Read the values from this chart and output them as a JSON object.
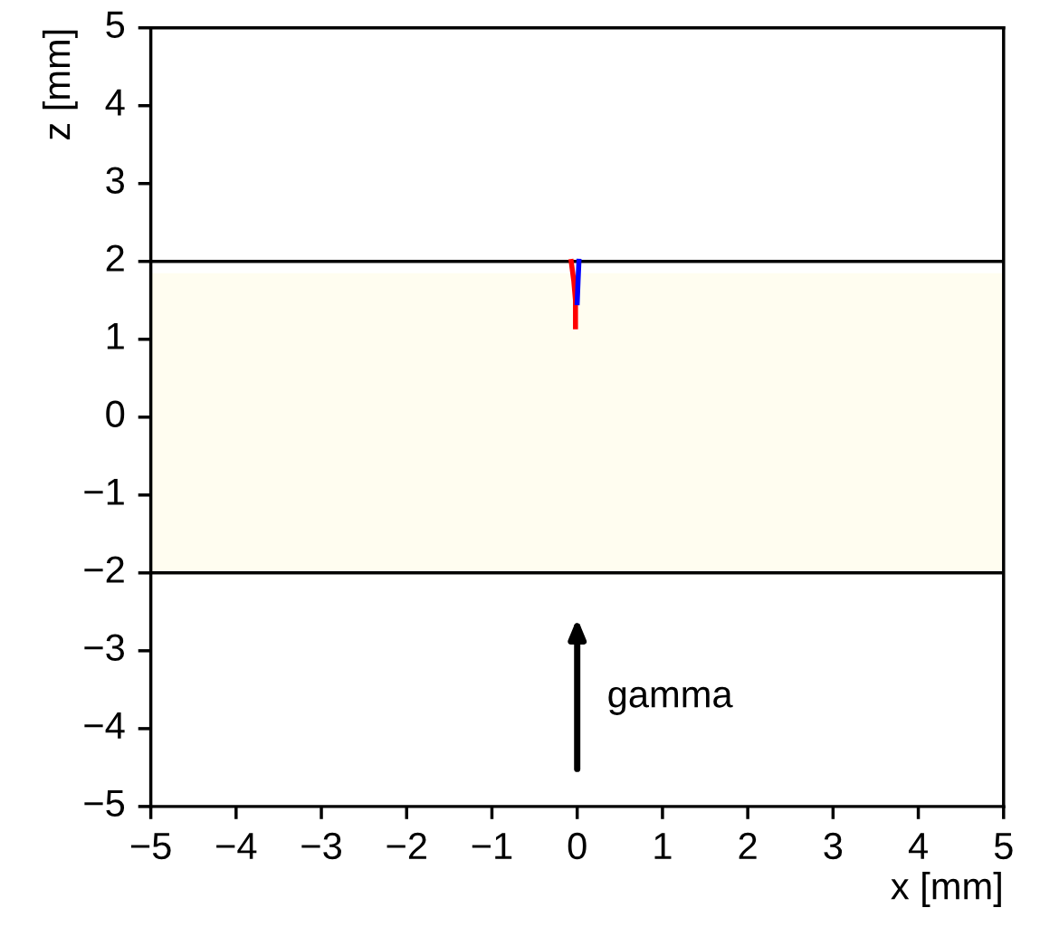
{
  "chart_data": {
    "type": "line",
    "xlabel": "x [mm]",
    "ylabel": "z [mm]",
    "xlim": [
      -5,
      5
    ],
    "ylim": [
      -5,
      5
    ],
    "xticks": [
      {
        "value": -5,
        "label": "−5"
      },
      {
        "value": -4,
        "label": "−4"
      },
      {
        "value": -3,
        "label": "−3"
      },
      {
        "value": -2,
        "label": "−2"
      },
      {
        "value": -1,
        "label": "−1"
      },
      0,
      1,
      2,
      3,
      4,
      5
    ],
    "yticks": [
      {
        "value": -5,
        "label": "−5"
      },
      {
        "value": -4,
        "label": "−4"
      },
      {
        "value": -3,
        "label": "−3"
      },
      {
        "value": -2,
        "label": "−2"
      },
      {
        "value": -1,
        "label": "−1"
      },
      0,
      1,
      2,
      3,
      4,
      5
    ],
    "series": [
      {
        "color": "#ff0000",
        "x": [
          -0.07,
          -0.04,
          -0.02,
          -0.02
        ],
        "values": [
          2.0,
          1.75,
          1.5,
          1.16
        ]
      },
      {
        "color": "#0000ff",
        "x": [
          0.02,
          0.01,
          0.0
        ],
        "values": [
          2.0,
          1.75,
          1.47
        ]
      }
    ],
    "bands": [
      {
        "axis": "y",
        "from": -2,
        "to": 1.85,
        "color": "#fffdf0"
      }
    ],
    "ref_lines": [
      {
        "axis": "y",
        "value": 2,
        "color": "#000000"
      },
      {
        "axis": "y",
        "value": -2,
        "color": "#000000"
      }
    ],
    "annotations": [
      "gamma"
    ],
    "grid": false,
    "legend": false,
    "marker": "none",
    "line_style": "solid"
  }
}
